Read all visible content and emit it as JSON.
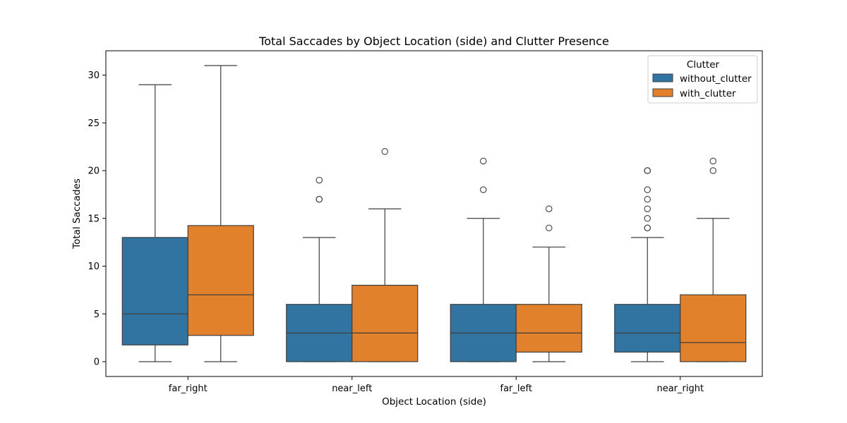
{
  "chart_data": {
    "type": "boxplot",
    "title": "Total Saccades by Object Location (side) and Clutter Presence",
    "xlabel": "Object Location (side)",
    "ylabel": "Total Saccades",
    "ylim": [
      -1.55,
      32.55
    ],
    "yticks": [
      0,
      5,
      10,
      15,
      20,
      25,
      30
    ],
    "categories": [
      "far_right",
      "near_left",
      "far_left",
      "near_right"
    ],
    "legend": {
      "title": "Clutter",
      "position": "top-right",
      "entries": [
        "without_clutter",
        "with_clutter"
      ]
    },
    "series": [
      {
        "name": "without_clutter",
        "color": "#3274a1",
        "boxes": [
          {
            "category": "far_right",
            "whisker_low": 0,
            "q1": 1.75,
            "median": 5,
            "q3": 13,
            "whisker_high": 29,
            "outliers": []
          },
          {
            "category": "near_left",
            "whisker_low": 0,
            "q1": 0,
            "median": 3,
            "q3": 6,
            "whisker_high": 13,
            "outliers": [
              19,
              17,
              17
            ]
          },
          {
            "category": "far_left",
            "whisker_low": 0,
            "q1": 0,
            "median": 3,
            "q3": 6,
            "whisker_high": 15,
            "outliers": [
              21,
              18
            ]
          },
          {
            "category": "near_right",
            "whisker_low": 0,
            "q1": 1,
            "median": 3,
            "q3": 6,
            "whisker_high": 13,
            "outliers": [
              20,
              20,
              18,
              17,
              16,
              15,
              14,
              14
            ]
          }
        ]
      },
      {
        "name": "with_clutter",
        "color": "#e1812c",
        "boxes": [
          {
            "category": "far_right",
            "whisker_low": 0,
            "q1": 2.75,
            "median": 7,
            "q3": 14.25,
            "whisker_high": 31,
            "outliers": []
          },
          {
            "category": "near_left",
            "whisker_low": 0,
            "q1": 0,
            "median": 3,
            "q3": 8,
            "whisker_high": 16,
            "outliers": [
              22
            ]
          },
          {
            "category": "far_left",
            "whisker_low": 0,
            "q1": 1,
            "median": 3,
            "q3": 6,
            "whisker_high": 12,
            "outliers": [
              16,
              14
            ]
          },
          {
            "category": "near_right",
            "whisker_low": 0,
            "q1": 0,
            "median": 2,
            "q3": 7,
            "whisker_high": 15,
            "outliers": [
              21,
              20
            ]
          }
        ]
      }
    ]
  }
}
